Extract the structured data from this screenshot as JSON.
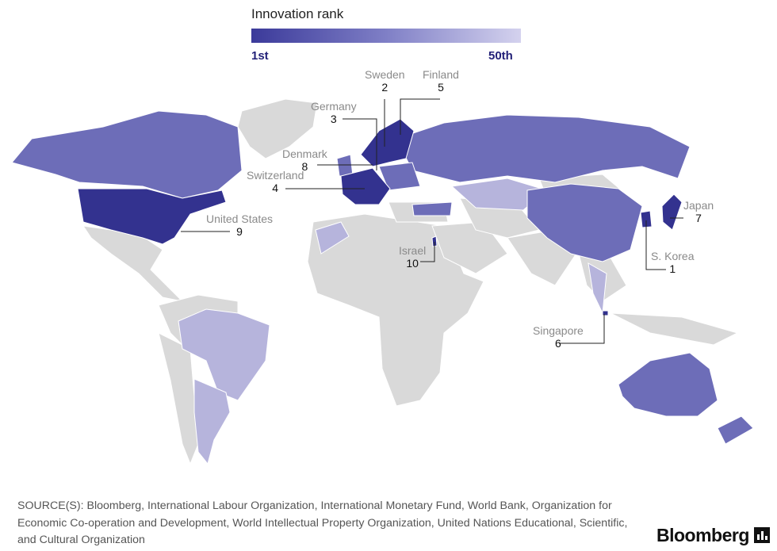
{
  "legend": {
    "title": "Innovation rank",
    "min_label": "1st",
    "max_label": "50th",
    "color_dark": "#3b3a9a",
    "color_light": "#d4d2ee"
  },
  "colors": {
    "unranked_land": "#d9d9d9",
    "rank_dark": "#33328f",
    "rank_mid": "#6d6db8",
    "rank_light": "#b6b4dc",
    "callout_line": "#222222"
  },
  "callouts": [
    {
      "key": "skorea",
      "name": "S. Korea",
      "rank": "1"
    },
    {
      "key": "sweden",
      "name": "Sweden",
      "rank": "2"
    },
    {
      "key": "germany",
      "name": "Germany",
      "rank": "3"
    },
    {
      "key": "switzerland",
      "name": "Switzerland",
      "rank": "4"
    },
    {
      "key": "finland",
      "name": "Finland",
      "rank": "5"
    },
    {
      "key": "singapore",
      "name": "Singapore",
      "rank": "6"
    },
    {
      "key": "japan",
      "name": "Japan",
      "rank": "7"
    },
    {
      "key": "denmark",
      "name": "Denmark",
      "rank": "8"
    },
    {
      "key": "us",
      "name": "United States",
      "rank": "9"
    },
    {
      "key": "israel",
      "name": "Israel",
      "rank": "10"
    }
  ],
  "source": "SOURCE(S): Bloomberg, International Labour Organization, International Monetary Fund, World Bank, Organization for Economic Co-operation and Development, World Intellectual Property Organization, United Nations Educational, Scientific, and Cultural Organization",
  "brand": "Bloomberg",
  "brand_icon": "bar-chart-icon"
}
